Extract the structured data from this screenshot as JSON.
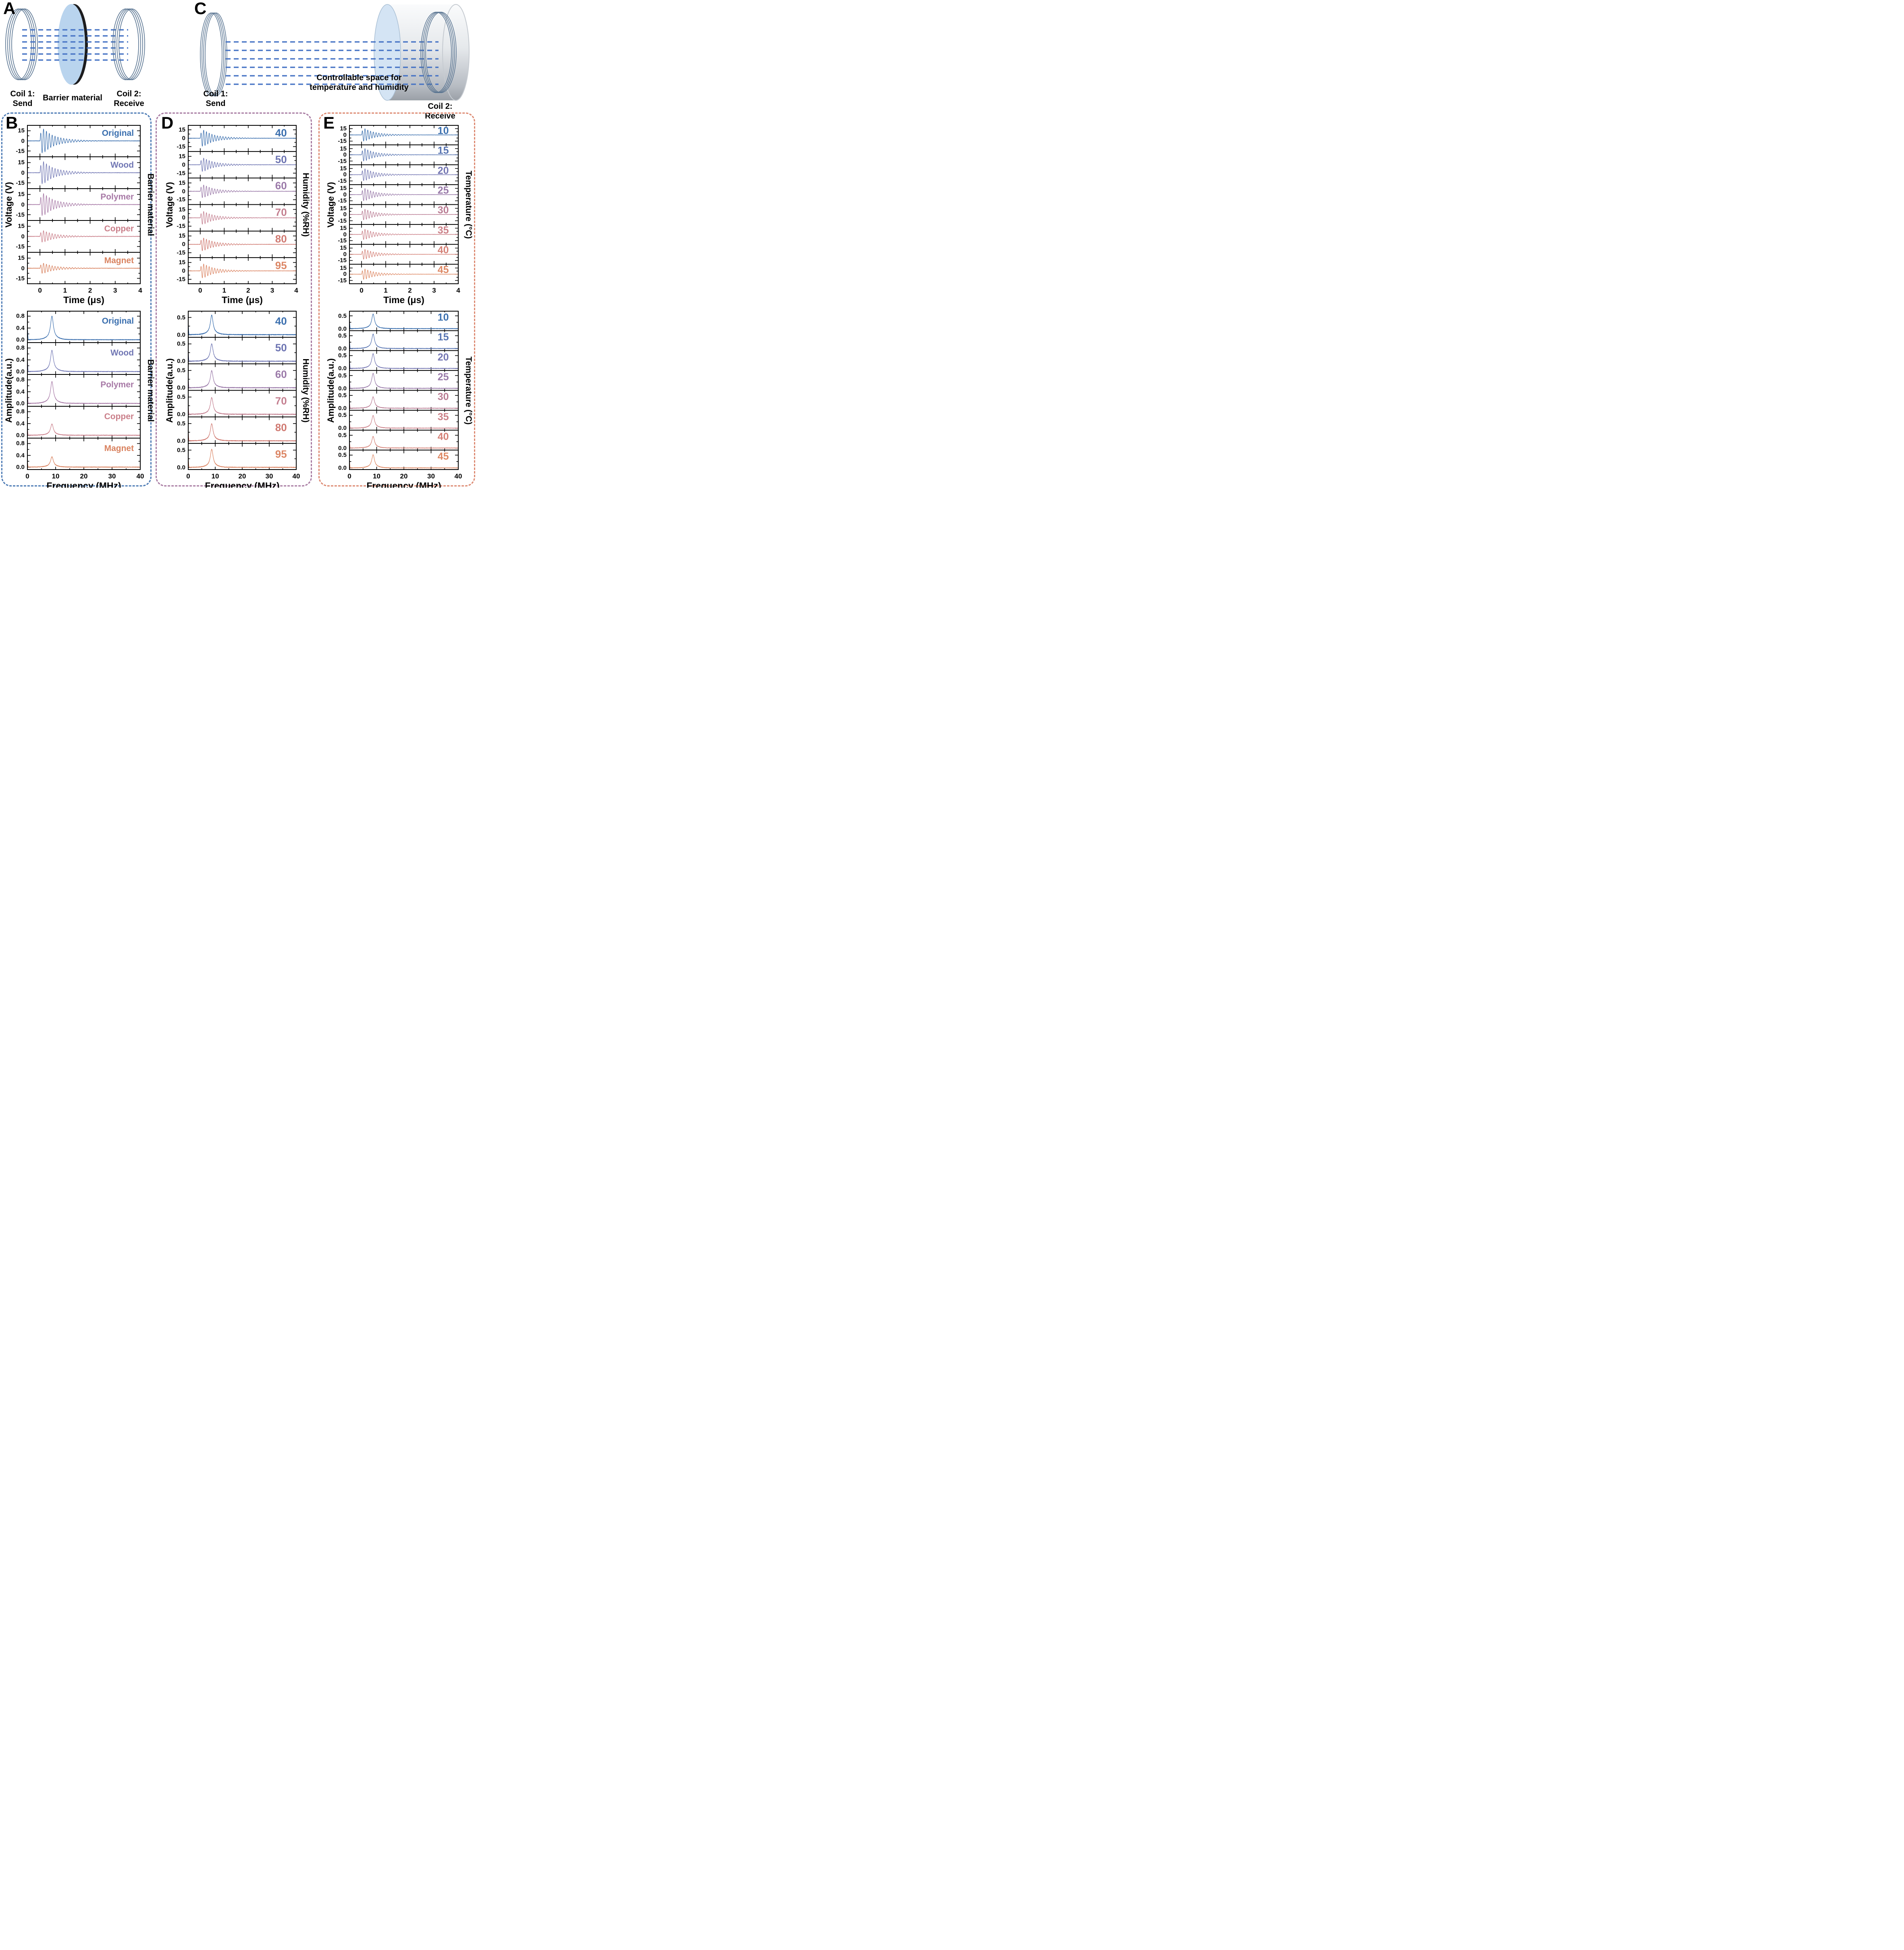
{
  "figure": {
    "letters": {
      "A": "A",
      "B": "B",
      "C": "C",
      "D": "D",
      "E": "E"
    },
    "box_colors": {
      "B": "#4d7bb5",
      "D": "#a87ba2",
      "E": "#dd8a72"
    },
    "field_line_color": "#4472c4"
  },
  "panels": {
    "A": {
      "coil1_line1": "Coil 1:",
      "coil1_line2": "Send",
      "barrier_label": "Barrier material",
      "coil2_line1": "Coil 2:",
      "coil2_line2": "Receive"
    },
    "C": {
      "coil1_line1": "Coil 1:",
      "coil1_line2": "Send",
      "space_line1": "Controllable space for",
      "space_line2": "temperature and humidity",
      "coil2_line1": "Coil 2:",
      "coil2_line2": "Receive"
    }
  },
  "chart_data": [
    {
      "id": "B-time",
      "panel": "B",
      "type": "line",
      "kind": "time_waveform",
      "xlabel": "Time (μs)",
      "ylabel": "Voltage (V)",
      "right_label": "Barrier material",
      "x_range": [
        -0.5,
        4
      ],
      "x_ticks": [
        0,
        1,
        2,
        3,
        4
      ],
      "x_tick_labels": [
        "0",
        "1",
        "2",
        "3",
        "4"
      ],
      "x_minor_step": 0.5,
      "y_range": [
        -23,
        23
      ],
      "y_ticks": [
        {
          "v": 15,
          "label": "15"
        },
        {
          "v": 0,
          "label": "0"
        },
        {
          "v": -15,
          "label": "-15"
        }
      ],
      "y_minor": [
        7.5,
        -7.5
      ],
      "carrier_mhz": 8.7,
      "ring_decay_us": 0.42,
      "series": [
        {
          "label": "Original",
          "color": "#3c70af",
          "peak_v": 18.0
        },
        {
          "label": "Wood",
          "color": "#7177b4",
          "peak_v": 16.5
        },
        {
          "label": "Polymer",
          "color": "#a779a6",
          "peak_v": 16.5
        },
        {
          "label": "Copper",
          "color": "#ca7f8a",
          "peak_v": 8.5
        },
        {
          "label": "Magnet",
          "color": "#d9825f",
          "peak_v": 7.5
        }
      ]
    },
    {
      "id": "D-time",
      "panel": "D",
      "type": "line",
      "kind": "time_waveform",
      "xlabel": "Time (μs)",
      "ylabel": "Voltage (V)",
      "right_label": "Humidity  (%RH)",
      "x_range": [
        -0.5,
        4
      ],
      "x_ticks": [
        0,
        1,
        2,
        3,
        4
      ],
      "x_tick_labels": [
        "0",
        "1",
        "2",
        "3",
        "4"
      ],
      "x_minor_step": 0.5,
      "y_range": [
        -23,
        23
      ],
      "y_ticks": [
        {
          "v": 15,
          "label": "15"
        },
        {
          "v": 0,
          "label": "0"
        },
        {
          "v": -15,
          "label": "-15"
        }
      ],
      "y_minor": [
        7.5,
        -7.5
      ],
      "carrier_mhz": 8.7,
      "ring_decay_us": 0.42,
      "series": [
        {
          "label": "40",
          "color": "#3c70af",
          "peak_v": 14.5
        },
        {
          "label": "50",
          "color": "#6d74b2",
          "peak_v": 12.0
        },
        {
          "label": "60",
          "color": "#9b7aa9",
          "peak_v": 11.5
        },
        {
          "label": "70",
          "color": "#c47f90",
          "peak_v": 11.5
        },
        {
          "label": "80",
          "color": "#d07a72",
          "peak_v": 11.5
        },
        {
          "label": "95",
          "color": "#dc8766",
          "peak_v": 12.5
        }
      ]
    },
    {
      "id": "E-time",
      "panel": "E",
      "type": "line",
      "kind": "time_waveform",
      "xlabel": "Time (μs)",
      "ylabel": "Voltage (V)",
      "right_label": "Temperature (°C)",
      "x_range": [
        -0.5,
        4
      ],
      "x_ticks": [
        0,
        1,
        2,
        3,
        4
      ],
      "x_tick_labels": [
        "0",
        "1",
        "2",
        "3",
        "4"
      ],
      "x_minor_step": 0.5,
      "y_range": [
        -23,
        23
      ],
      "y_ticks": [
        {
          "v": 15,
          "label": "15"
        },
        {
          "v": 0,
          "label": "0"
        },
        {
          "v": -15,
          "label": "-15"
        }
      ],
      "y_minor": [
        7.5,
        -7.5
      ],
      "carrier_mhz": 8.7,
      "ring_decay_us": 0.4,
      "series": [
        {
          "label": "10",
          "color": "#3c70af",
          "peak_v": 15.0
        },
        {
          "label": "15",
          "color": "#5673b1",
          "peak_v": 15.0
        },
        {
          "label": "20",
          "color": "#7577b3",
          "peak_v": 14.5
        },
        {
          "label": "25",
          "color": "#997aa9",
          "peak_v": 15.0
        },
        {
          "label": "30",
          "color": "#ba7d94",
          "peak_v": 13.0
        },
        {
          "label": "35",
          "color": "#cb8088",
          "peak_v": 12.5
        },
        {
          "label": "40",
          "color": "#d58278",
          "peak_v": 12.0
        },
        {
          "label": "45",
          "color": "#de8965",
          "peak_v": 12.5
        }
      ]
    },
    {
      "id": "B-freq",
      "panel": "B",
      "type": "line",
      "kind": "spectrum",
      "xlabel": "Frequency (MHz)",
      "ylabel": "Amplitude(a.u.)",
      "right_label": "Barrier material",
      "x_range": [
        0,
        40
      ],
      "x_ticks": [
        0,
        10,
        20,
        30,
        40
      ],
      "x_tick_labels": [
        "0",
        "10",
        "20",
        "30",
        "40"
      ],
      "x_minor_step": 5,
      "y_range": [
        -0.08,
        0.97
      ],
      "y_ticks": [
        {
          "v": 0.8,
          "label": "0.8"
        },
        {
          "v": 0.4,
          "label": "0.4"
        },
        {
          "v": 0,
          "label": "0.0"
        }
      ],
      "y_minor": [
        0.6,
        0.2
      ],
      "peak_mhz": 8.7,
      "series": [
        {
          "label": "Original",
          "color": "#3c70af",
          "peak_amp": 0.8
        },
        {
          "label": "Wood",
          "color": "#7177b4",
          "peak_amp": 0.72
        },
        {
          "label": "Polymer",
          "color": "#a779a6",
          "peak_amp": 0.74
        },
        {
          "label": "Copper",
          "color": "#ca7f8a",
          "peak_amp": 0.38
        },
        {
          "label": "Magnet",
          "color": "#d9825f",
          "peak_amp": 0.35
        }
      ]
    },
    {
      "id": "D-freq",
      "panel": "D",
      "type": "line",
      "kind": "spectrum",
      "xlabel": "Frequency (MHz)",
      "ylabel": "Amplitude(a.u.)",
      "right_label": "Humidity  (%RH)",
      "x_range": [
        0,
        40
      ],
      "x_ticks": [
        0,
        10,
        20,
        30,
        40
      ],
      "x_tick_labels": [
        "0",
        "10",
        "20",
        "30",
        "40"
      ],
      "x_minor_step": 5,
      "y_range": [
        -0.06,
        0.68
      ],
      "y_ticks": [
        {
          "v": 0.5,
          "label": "0.5"
        },
        {
          "v": 0,
          "label": "0.0"
        }
      ],
      "y_minor": [
        0.25
      ],
      "peak_mhz": 8.7,
      "series": [
        {
          "label": "40",
          "color": "#3c70af",
          "peak_amp": 0.56
        },
        {
          "label": "50",
          "color": "#6d74b2",
          "peak_amp": 0.5
        },
        {
          "label": "60",
          "color": "#9b7aa9",
          "peak_amp": 0.49
        },
        {
          "label": "70",
          "color": "#c47f90",
          "peak_amp": 0.48
        },
        {
          "label": "80",
          "color": "#d07a72",
          "peak_amp": 0.49
        },
        {
          "label": "95",
          "color": "#dc8766",
          "peak_amp": 0.52
        }
      ]
    },
    {
      "id": "E-freq",
      "panel": "E",
      "type": "line",
      "kind": "spectrum",
      "xlabel": "Frequency (MHz)",
      "ylabel": "Amplitude(a.u.)",
      "right_label": "Temperature (°C)",
      "x_range": [
        0,
        40
      ],
      "x_ticks": [
        0,
        10,
        20,
        30,
        40
      ],
      "x_tick_labels": [
        "0",
        "10",
        "20",
        "30",
        "40"
      ],
      "x_minor_step": 5,
      "y_range": [
        -0.06,
        0.68
      ],
      "y_ticks": [
        {
          "v": 0.5,
          "label": "0.5"
        },
        {
          "v": 0,
          "label": "0.0"
        }
      ],
      "y_minor": [
        0.25
      ],
      "peak_mhz": 8.7,
      "series": [
        {
          "label": "10",
          "color": "#3c70af",
          "peak_amp": 0.57
        },
        {
          "label": "15",
          "color": "#5673b1",
          "peak_amp": 0.56
        },
        {
          "label": "20",
          "color": "#7577b3",
          "peak_amp": 0.57
        },
        {
          "label": "25",
          "color": "#997aa9",
          "peak_amp": 0.58
        },
        {
          "label": "30",
          "color": "#ba7d94",
          "peak_amp": 0.44
        },
        {
          "label": "35",
          "color": "#cb8088",
          "peak_amp": 0.49
        },
        {
          "label": "40",
          "color": "#d58278",
          "peak_amp": 0.45
        },
        {
          "label": "45",
          "color": "#de8965",
          "peak_amp": 0.51
        }
      ]
    }
  ]
}
